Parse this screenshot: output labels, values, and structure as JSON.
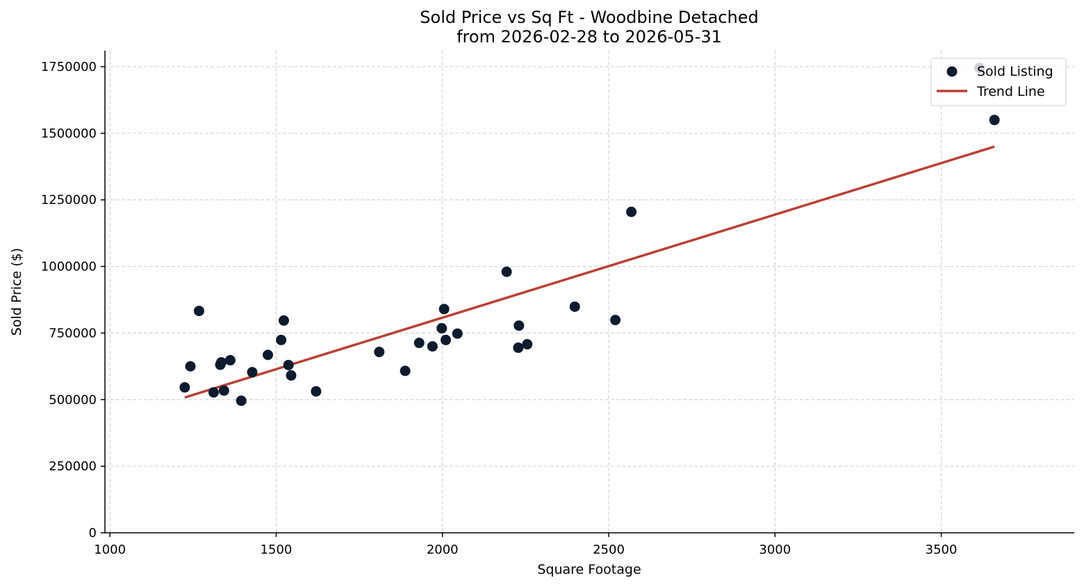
{
  "chart_data": {
    "type": "scatter",
    "title": "Sold Price vs Sq Ft - Woodbine Detached",
    "subtitle": "from 2026-02-28 to 2026-05-31",
    "xlabel": "Square Footage",
    "ylabel": "Sold Price ($)",
    "xlim": [
      985,
      3900
    ],
    "ylim": [
      0,
      1810000
    ],
    "x_ticks": [
      1000,
      1500,
      2000,
      2500,
      3000,
      3500
    ],
    "x_tick_labels": [
      "1000",
      "1500",
      "2000",
      "2500",
      "3000",
      "3500"
    ],
    "y_ticks": [
      0,
      250000,
      500000,
      750000,
      1000000,
      1250000,
      1500000,
      1750000
    ],
    "y_tick_labels": [
      "0",
      "250000",
      "500000",
      "750000",
      "1000000",
      "1250000",
      "1500000",
      "1750000"
    ],
    "grid": true,
    "legend_position": "top-right",
    "series": [
      {
        "name": "Sold Listing",
        "kind": "scatter",
        "color": "#0d1b2e",
        "x": [
          1225,
          1242,
          1268,
          1312,
          1332,
          1335,
          1343,
          1362,
          1395,
          1428,
          1475,
          1515,
          1523,
          1537,
          1545,
          1620,
          1810,
          1888,
          1930,
          1970,
          1998,
          2005,
          2010,
          2045,
          2193,
          2228,
          2230,
          2255,
          2398,
          2520,
          2568,
          3615,
          3660
        ],
        "y": [
          546000,
          625000,
          833000,
          527000,
          631000,
          640000,
          534000,
          648000,
          496000,
          603000,
          668000,
          724000,
          797000,
          630000,
          591000,
          531000,
          679000,
          608000,
          713000,
          700000,
          768000,
          840000,
          724000,
          748000,
          980000,
          695000,
          778000,
          708000,
          849000,
          799000,
          1205000,
          1745000,
          1550000
        ]
      },
      {
        "name": "Trend Line",
        "kind": "line",
        "color": "#b94034",
        "x": [
          1225,
          3660
        ],
        "y": [
          508000,
          1450000
        ]
      }
    ]
  }
}
